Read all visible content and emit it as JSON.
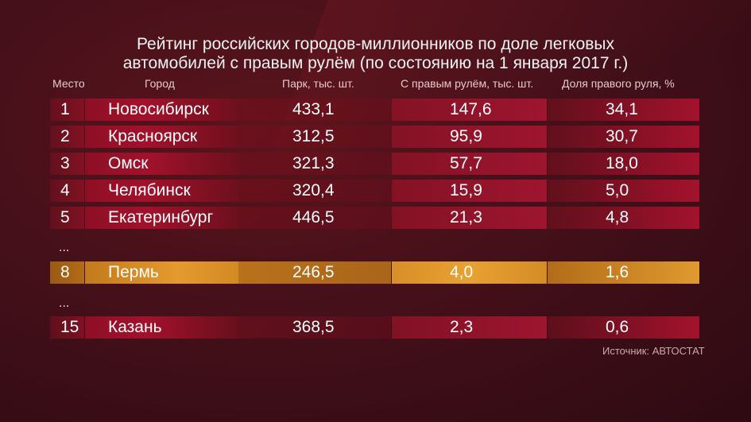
{
  "chart_data": {
    "type": "table",
    "title": "Рейтинг российских городов-миллионников по доле легковых автомобилей с правым рулём (по состоянию на 1 января 2017 г.)",
    "title_lines": [
      "Рейтинг российских городов-миллионников по доле легковых",
      "автомобилей с правым рулём (по состоянию на 1 января 2017 г.)"
    ],
    "columns": [
      "Место",
      "Город",
      "Парк, тыс. шт.",
      "С правым рулём, тыс. шт.",
      "Доля правого руля, %"
    ],
    "rows": [
      {
        "place": "1",
        "city": "Новосибирск",
        "park": "433,1",
        "right_hand": "147,6",
        "share": "34,1",
        "highlight": false
      },
      {
        "place": "2",
        "city": "Красноярск",
        "park": "312,5",
        "right_hand": "95,9",
        "share": "30,7",
        "highlight": false
      },
      {
        "place": "3",
        "city": "Омск",
        "park": "321,3",
        "right_hand": "57,7",
        "share": "18,0",
        "highlight": false
      },
      {
        "place": "4",
        "city": "Челябинск",
        "park": "320,4",
        "right_hand": "15,9",
        "share": "5,0",
        "highlight": false
      },
      {
        "place": "5",
        "city": "Екатеринбург",
        "park": "446,5",
        "right_hand": "21,3",
        "share": "4,8",
        "highlight": false
      },
      {
        "place": "8",
        "city": "Пермь",
        "park": "246,5",
        "right_hand": "4,0",
        "share": "1,6",
        "highlight": true
      },
      {
        "place": "15",
        "city": "Казань",
        "park": "368,5",
        "right_hand": "2,3",
        "share": "0,6",
        "highlight": false
      }
    ],
    "ellipsis": "...",
    "source": "Источник: АВТОСТАТ"
  }
}
